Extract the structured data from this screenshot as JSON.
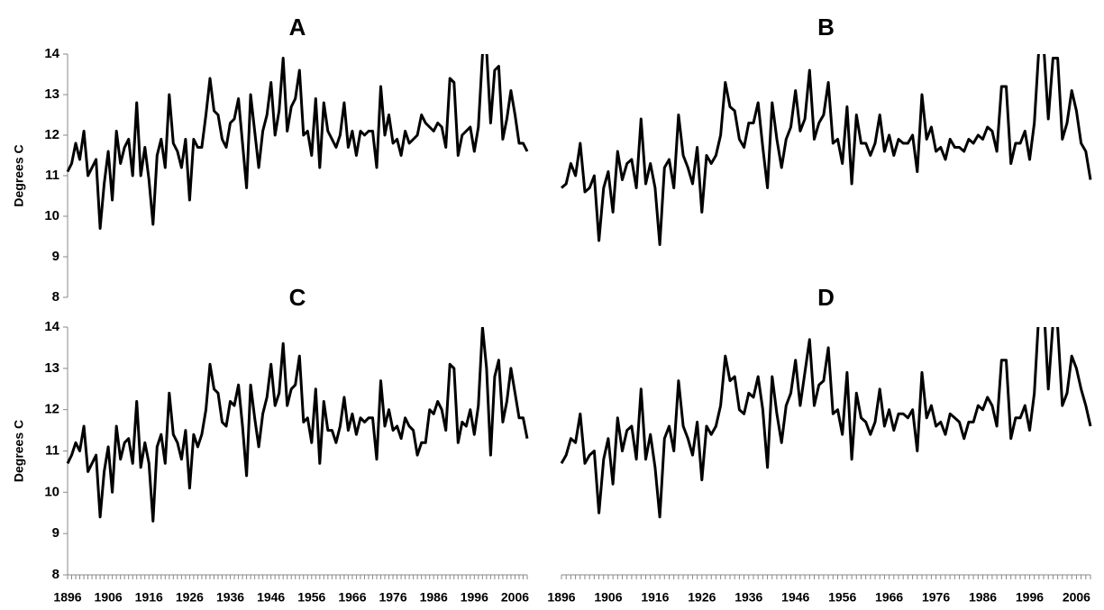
{
  "chart_data": [
    {
      "type": "line",
      "title": "A",
      "ylabel": "Degrees C",
      "show_ylabel": true,
      "show_yticks": true,
      "show_xticks": false,
      "ylim": [
        8,
        14
      ],
      "yticks": [
        "8",
        "9",
        "10",
        "11",
        "12",
        "13",
        "14"
      ],
      "x_start": 1896,
      "xticks": [
        "1896",
        "1906",
        "1916",
        "1926",
        "1936",
        "1946",
        "1956",
        "1966",
        "1976",
        "1986",
        "1996",
        "2006"
      ],
      "series": [
        {
          "color": "#000000",
          "values": [
            11.1,
            11.3,
            11.8,
            11.4,
            12.1,
            11.0,
            11.2,
            11.4,
            9.7,
            10.8,
            11.6,
            10.4,
            12.1,
            11.3,
            11.7,
            11.9,
            11.0,
            12.8,
            11.0,
            11.7,
            10.9,
            9.8,
            11.5,
            11.9,
            11.2,
            13.0,
            11.8,
            11.6,
            11.2,
            11.9,
            10.4,
            11.9,
            11.7,
            11.7,
            12.5,
            13.4,
            12.6,
            12.5,
            11.9,
            11.7,
            12.3,
            12.4,
            12.9,
            11.8,
            10.7,
            13.0,
            12.1,
            11.2,
            12.1,
            12.5,
            13.3,
            12.0,
            12.6,
            13.9,
            12.1,
            12.7,
            12.9,
            13.6,
            12.0,
            12.1,
            11.5,
            12.9,
            11.2,
            12.8,
            12.1,
            11.9,
            11.7,
            12.0,
            12.8,
            11.7,
            12.1,
            11.5,
            12.1,
            12.0,
            12.1,
            12.1,
            11.2,
            13.2,
            12.0,
            12.5,
            11.8,
            11.9,
            11.5,
            12.1,
            11.8,
            11.9,
            12.0,
            12.5,
            12.3,
            12.2,
            12.1,
            12.3,
            12.2,
            11.7,
            13.4,
            13.3,
            11.5,
            12.0,
            12.1,
            12.2,
            11.6,
            12.2,
            14.0,
            14.1,
            12.3,
            13.6,
            13.7,
            11.9,
            12.4,
            13.1,
            12.5,
            11.8,
            11.8,
            11.6
          ]
        }
      ]
    },
    {
      "type": "line",
      "title": "B",
      "ylabel": "",
      "show_ylabel": false,
      "show_yticks": false,
      "show_xticks": false,
      "ylim": [
        8,
        14
      ],
      "yticks": [],
      "x_start": 1896,
      "xticks": [
        "1896",
        "1906",
        "1916",
        "1926",
        "1936",
        "1946",
        "1956",
        "1966",
        "1976",
        "1986",
        "1996",
        "2006"
      ],
      "series": [
        {
          "color": "#000000",
          "values": [
            10.7,
            10.8,
            11.3,
            11.0,
            11.8,
            10.6,
            10.7,
            11.0,
            9.4,
            10.7,
            11.1,
            10.1,
            11.6,
            10.9,
            11.3,
            11.4,
            10.7,
            12.4,
            10.8,
            11.3,
            10.7,
            9.3,
            11.2,
            11.4,
            10.7,
            12.5,
            11.5,
            11.2,
            10.8,
            11.7,
            10.1,
            11.5,
            11.3,
            11.5,
            12.0,
            13.3,
            12.7,
            12.6,
            11.9,
            11.7,
            12.3,
            12.3,
            12.8,
            11.7,
            10.7,
            12.8,
            11.9,
            11.2,
            11.9,
            12.2,
            13.1,
            12.1,
            12.4,
            13.6,
            11.9,
            12.3,
            12.5,
            13.3,
            11.8,
            11.9,
            11.3,
            12.7,
            10.8,
            12.5,
            11.8,
            11.8,
            11.5,
            11.8,
            12.5,
            11.6,
            12.0,
            11.5,
            11.9,
            11.8,
            11.8,
            12.0,
            11.1,
            13.0,
            11.9,
            12.2,
            11.6,
            11.7,
            11.4,
            11.9,
            11.7,
            11.7,
            11.6,
            11.9,
            11.8,
            12.0,
            11.9,
            12.2,
            12.1,
            11.6,
            13.2,
            13.2,
            11.3,
            11.8,
            11.8,
            12.1,
            11.4,
            12.3,
            14.2,
            14.2,
            12.4,
            13.9,
            13.9,
            11.9,
            12.3,
            13.1,
            12.6,
            11.8,
            11.6,
            10.9
          ]
        }
      ]
    },
    {
      "type": "line",
      "title": "C",
      "ylabel": "Degrees C",
      "show_ylabel": true,
      "show_yticks": true,
      "show_xticks": true,
      "ylim": [
        8,
        14
      ],
      "yticks": [
        "8",
        "9",
        "10",
        "11",
        "12",
        "13",
        "14"
      ],
      "x_start": 1896,
      "xticks": [
        "1896",
        "1906",
        "1916",
        "1926",
        "1936",
        "1946",
        "1956",
        "1966",
        "1976",
        "1986",
        "1996",
        "2006"
      ],
      "series": [
        {
          "color": "#000000",
          "values": [
            10.7,
            10.9,
            11.2,
            11.0,
            11.6,
            10.5,
            10.7,
            10.9,
            9.4,
            10.5,
            11.1,
            10.0,
            11.6,
            10.8,
            11.2,
            11.3,
            10.7,
            12.2,
            10.6,
            11.2,
            10.7,
            9.3,
            11.1,
            11.4,
            10.7,
            12.4,
            11.4,
            11.2,
            10.8,
            11.5,
            10.1,
            11.4,
            11.1,
            11.4,
            12.0,
            13.1,
            12.5,
            12.4,
            11.7,
            11.6,
            12.2,
            12.1,
            12.6,
            11.6,
            10.4,
            12.6,
            11.8,
            11.1,
            11.9,
            12.3,
            13.1,
            12.1,
            12.4,
            13.6,
            12.1,
            12.5,
            12.6,
            13.3,
            11.7,
            11.8,
            11.2,
            12.5,
            10.7,
            12.2,
            11.5,
            11.5,
            11.2,
            11.6,
            12.3,
            11.5,
            11.9,
            11.4,
            11.8,
            11.7,
            11.8,
            11.8,
            10.8,
            12.7,
            11.6,
            12.0,
            11.5,
            11.6,
            11.3,
            11.8,
            11.6,
            11.5,
            10.9,
            11.2,
            11.2,
            12.0,
            11.9,
            12.2,
            12.0,
            11.5,
            13.1,
            13.0,
            11.2,
            11.7,
            11.6,
            12.0,
            11.4,
            12.1,
            14.0,
            13.0,
            10.9,
            12.8,
            13.2,
            11.7,
            12.2,
            13.0,
            12.4,
            11.8,
            11.8,
            11.3
          ]
        }
      ]
    },
    {
      "type": "line",
      "title": "D",
      "ylabel": "",
      "show_ylabel": false,
      "show_yticks": false,
      "show_xticks": true,
      "ylim": [
        8,
        14
      ],
      "yticks": [],
      "x_start": 1896,
      "xticks": [
        "1896",
        "1906",
        "1916",
        "1926",
        "1936",
        "1946",
        "1956",
        "1966",
        "1976",
        "1986",
        "1996",
        "2006"
      ],
      "series": [
        {
          "color": "#000000",
          "values": [
            10.7,
            10.9,
            11.3,
            11.2,
            11.9,
            10.7,
            10.9,
            11.0,
            9.5,
            10.8,
            11.3,
            10.2,
            11.8,
            11.0,
            11.5,
            11.6,
            10.8,
            12.5,
            10.8,
            11.4,
            10.6,
            9.4,
            11.3,
            11.6,
            11.0,
            12.7,
            11.6,
            11.3,
            10.9,
            11.7,
            10.3,
            11.6,
            11.4,
            11.6,
            12.1,
            13.3,
            12.7,
            12.8,
            12.0,
            11.9,
            12.4,
            12.3,
            12.8,
            12.0,
            10.6,
            12.8,
            11.9,
            11.2,
            12.1,
            12.4,
            13.2,
            12.1,
            12.9,
            13.7,
            12.1,
            12.6,
            12.7,
            13.5,
            11.9,
            12.0,
            11.4,
            12.9,
            10.8,
            12.4,
            11.8,
            11.7,
            11.4,
            11.7,
            12.5,
            11.6,
            12.0,
            11.5,
            11.9,
            11.9,
            11.8,
            12.0,
            11.0,
            12.9,
            11.8,
            12.1,
            11.6,
            11.7,
            11.4,
            11.9,
            11.8,
            11.7,
            11.3,
            11.7,
            11.7,
            12.1,
            12.0,
            12.3,
            12.1,
            11.6,
            13.2,
            13.2,
            11.3,
            11.8,
            11.8,
            12.1,
            11.5,
            12.4,
            14.4,
            14.6,
            12.5,
            14.1,
            14.0,
            12.1,
            12.4,
            13.3,
            13.0,
            12.5,
            12.1,
            11.6
          ]
        }
      ]
    }
  ]
}
